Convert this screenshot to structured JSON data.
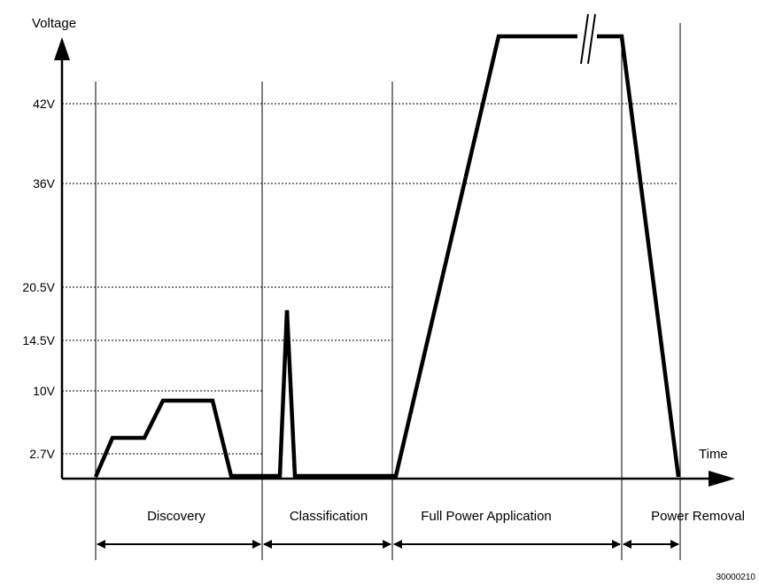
{
  "diagram": {
    "y_axis_label": "Voltage",
    "x_axis_label": "Time",
    "voltage_levels": [
      "42V",
      "36V",
      "20.5V",
      "14.5V",
      "10V",
      "2.7V"
    ],
    "phases": [
      "Discovery",
      "Classification",
      "Full Power Application",
      "Power Removal"
    ],
    "figure_id": "30000210"
  }
}
